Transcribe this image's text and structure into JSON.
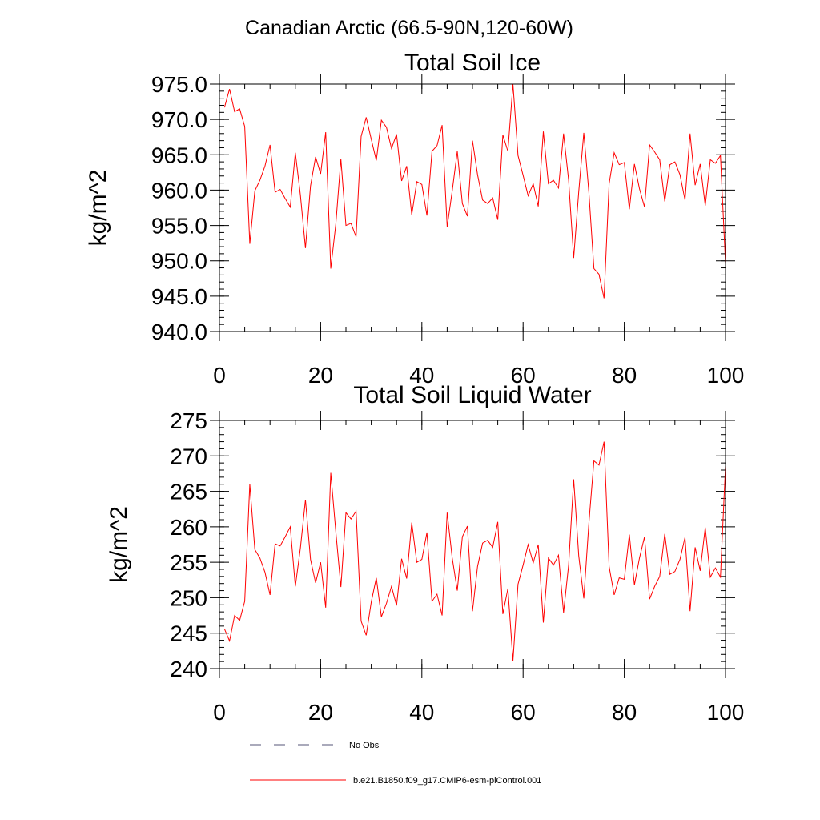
{
  "figure": {
    "suptitle": "Canadian Arctic (66.5-90N,120-60W)"
  },
  "legend": {
    "entries": [
      {
        "label": "No Obs",
        "style": "dashed",
        "color": "#555577"
      },
      {
        "label": "b.e21.B1850.f09_g17.CMIP6-esm-piControl.001",
        "style": "solid",
        "color": "#ff0000"
      }
    ]
  },
  "chart_data": [
    {
      "type": "line",
      "title": "Total Soil Ice",
      "xlabel": "",
      "ylabel": "kg/m^2",
      "xlim": [
        0,
        100
      ],
      "ylim": [
        940,
        975
      ],
      "xticks": [
        0,
        20,
        40,
        60,
        80,
        100
      ],
      "yticks": [
        940,
        945,
        950,
        955,
        960,
        965,
        970,
        975
      ],
      "ytick_labels": [
        "940.0",
        "945.0",
        "950.0",
        "955.0",
        "960.0",
        "965.0",
        "970.0",
        "975.0"
      ],
      "grid": false,
      "series": [
        {
          "color": "#ff0000",
          "x": [
            1,
            2,
            3,
            4,
            5,
            6,
            7,
            8,
            9,
            10,
            11,
            12,
            13,
            14,
            15,
            16,
            17,
            18,
            19,
            20,
            21,
            22,
            23,
            24,
            25,
            26,
            27,
            28,
            29,
            30,
            31,
            32,
            33,
            34,
            35,
            36,
            37,
            38,
            39,
            40,
            41,
            42,
            43,
            44,
            45,
            46,
            47,
            48,
            49,
            50,
            51,
            52,
            53,
            54,
            55,
            56,
            57,
            58,
            59,
            60,
            61,
            62,
            63,
            64,
            65,
            66,
            67,
            68,
            69,
            70,
            71,
            72,
            73,
            74,
            75,
            76,
            77,
            78,
            79,
            80,
            81,
            82,
            83,
            84,
            85,
            86,
            87,
            88,
            89,
            90,
            91,
            92,
            93,
            94,
            95,
            96,
            97,
            98,
            99,
            100
          ],
          "y": [
            971.7,
            974.3,
            971.1,
            971.5,
            969.0,
            952.4,
            959.9,
            961.4,
            963.4,
            966.4,
            959.7,
            960.1,
            958.8,
            957.6,
            965.3,
            959.3,
            951.8,
            960.6,
            964.7,
            962.3,
            968.2,
            948.9,
            955.2,
            964.4,
            955.0,
            955.3,
            953.4,
            967.6,
            970.3,
            967.2,
            964.2,
            969.9,
            968.9,
            965.9,
            967.9,
            961.3,
            963.4,
            956.5,
            961.2,
            960.8,
            956.4,
            965.5,
            966.3,
            969.2,
            954.8,
            959.9,
            965.5,
            958.1,
            956.3,
            967.0,
            962.2,
            958.6,
            958.1,
            958.9,
            955.8,
            967.8,
            965.5,
            975.0,
            964.9,
            962.1,
            959.2,
            960.9,
            957.7,
            968.3,
            960.9,
            961.4,
            960.3,
            968.0,
            961.4,
            950.4,
            959.8,
            968.1,
            959.7,
            948.9,
            948.1,
            944.7,
            960.9,
            965.3,
            963.6,
            963.9,
            957.3,
            963.7,
            960.2,
            957.6,
            966.4,
            965.4,
            964.3,
            958.4,
            963.6,
            964.0,
            962.2,
            958.6,
            968.0,
            960.7,
            963.7,
            957.8,
            964.3,
            963.8,
            964.9,
            949.6
          ]
        }
      ]
    },
    {
      "type": "line",
      "title": "Total Soil Liquid Water",
      "xlabel": "",
      "ylabel": "kg/m^2",
      "xlim": [
        0,
        100
      ],
      "ylim": [
        240,
        275
      ],
      "xticks": [
        0,
        20,
        40,
        60,
        80,
        100
      ],
      "yticks": [
        240,
        245,
        250,
        255,
        260,
        265,
        270,
        275
      ],
      "ytick_labels": [
        "240",
        "245",
        "250",
        "255",
        "260",
        "265",
        "270",
        "275"
      ],
      "grid": false,
      "series": [
        {
          "color": "#ff0000",
          "x": [
            1,
            2,
            3,
            4,
            5,
            6,
            7,
            8,
            9,
            10,
            11,
            12,
            13,
            14,
            15,
            16,
            17,
            18,
            19,
            20,
            21,
            22,
            23,
            24,
            25,
            26,
            27,
            28,
            29,
            30,
            31,
            32,
            33,
            34,
            35,
            36,
            37,
            38,
            39,
            40,
            41,
            42,
            43,
            44,
            45,
            46,
            47,
            48,
            49,
            50,
            51,
            52,
            53,
            54,
            55,
            56,
            57,
            58,
            59,
            60,
            61,
            62,
            63,
            64,
            65,
            66,
            67,
            68,
            69,
            70,
            71,
            72,
            73,
            74,
            75,
            76,
            77,
            78,
            79,
            80,
            81,
            82,
            83,
            84,
            85,
            86,
            87,
            88,
            89,
            90,
            91,
            92,
            93,
            94,
            95,
            96,
            97,
            98,
            99,
            100
          ],
          "y": [
            245.6,
            243.9,
            247.5,
            246.8,
            249.5,
            266.0,
            256.8,
            255.6,
            253.6,
            250.4,
            257.6,
            257.3,
            258.6,
            260.0,
            251.6,
            257.0,
            263.8,
            255.4,
            252.1,
            255.0,
            248.6,
            267.6,
            259.3,
            251.5,
            262.0,
            261.1,
            262.2,
            246.7,
            244.7,
            249.4,
            252.8,
            247.3,
            249.2,
            251.6,
            248.9,
            255.5,
            252.7,
            260.6,
            255.0,
            255.4,
            259.2,
            249.5,
            250.5,
            247.5,
            262.0,
            255.6,
            251.0,
            258.6,
            260.1,
            248.1,
            254.4,
            257.7,
            258.1,
            257.1,
            260.7,
            247.7,
            251.3,
            241.1,
            251.9,
            254.6,
            257.5,
            254.9,
            257.5,
            246.5,
            255.6,
            254.6,
            256.0,
            247.9,
            254.6,
            266.7,
            255.9,
            249.9,
            260.5,
            269.3,
            268.7,
            272.0,
            254.4,
            250.4,
            252.8,
            252.6,
            258.9,
            251.8,
            255.6,
            258.6,
            249.8,
            251.6,
            253.0,
            259.0,
            253.3,
            253.7,
            255.4,
            258.5,
            248.1,
            257.1,
            253.8,
            259.9,
            252.9,
            254.2,
            252.9,
            268.6
          ]
        }
      ]
    }
  ]
}
